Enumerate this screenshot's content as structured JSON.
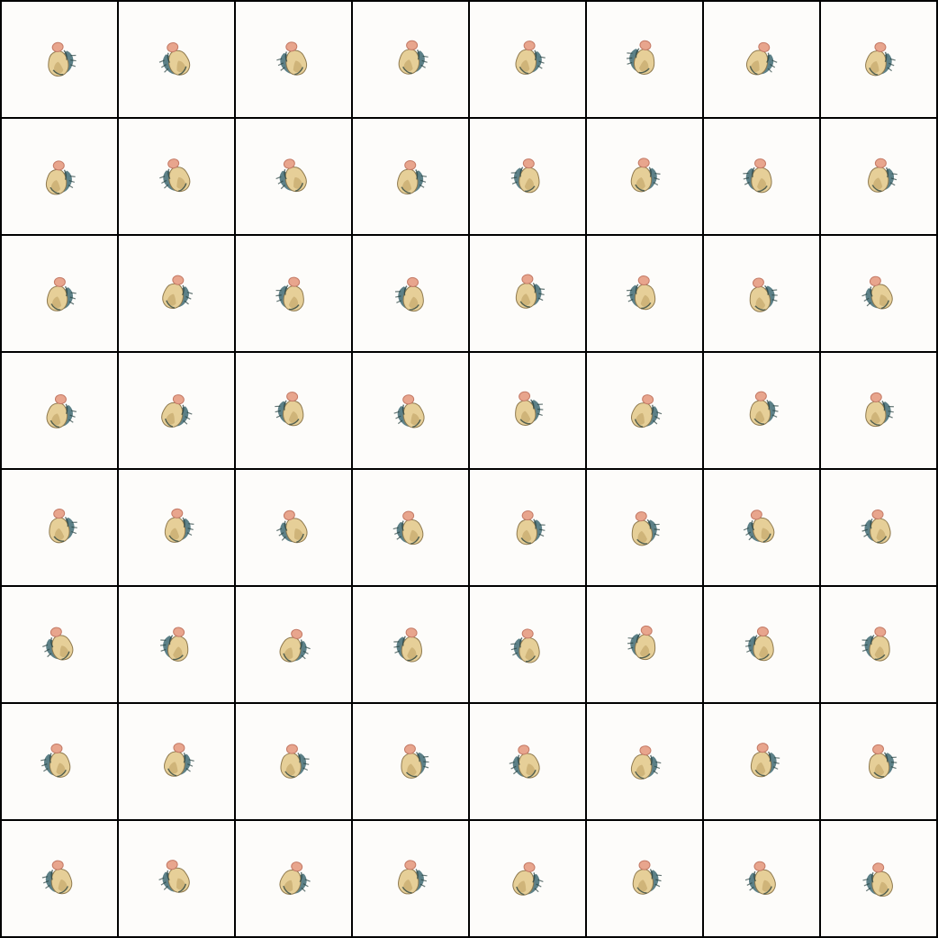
{
  "grid": {
    "rows": 8,
    "columns": 8,
    "cell_count": 64,
    "subject": "sprite-blob",
    "colors": {
      "background": "#fdfcfa",
      "border": "#000000",
      "body_light": "#e6cf98",
      "body_mid": "#c9ad72",
      "body_dark": "#8f7a4f",
      "head": "#e8a58d",
      "head_dark": "#c47a66",
      "shadow_teal": "#3f6a72",
      "shadow_dark": "#26403f"
    }
  }
}
